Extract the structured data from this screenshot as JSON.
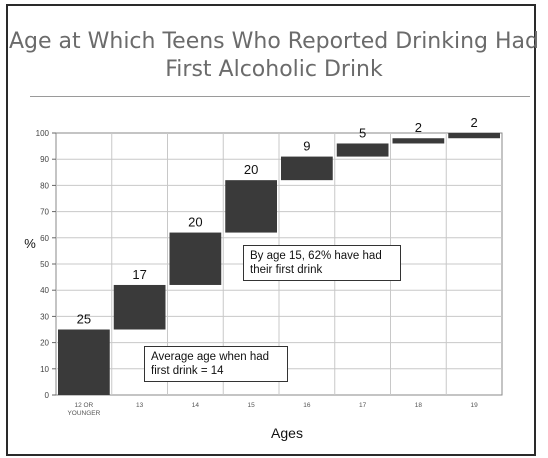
{
  "chart_data": {
    "type": "bar",
    "subtype": "waterfall-cumulative",
    "title": "Age at Which Teens Who Reported Drinking Had First Alcoholic Drink",
    "xlabel": "Ages",
    "ylabel": "%",
    "ylim": [
      0,
      100
    ],
    "ytick_step": 10,
    "yticks": [
      "0",
      "10",
      "20",
      "30",
      "40",
      "50",
      "60",
      "70",
      "80",
      "90",
      "100"
    ],
    "grid": true,
    "bar_color": "#3a3a3a",
    "categories": [
      "12 OR YOUNGER",
      "13",
      "14",
      "15",
      "16",
      "17",
      "18",
      "19"
    ],
    "values": [
      25,
      17,
      20,
      20,
      9,
      5,
      2,
      2
    ],
    "value_labels": [
      "25",
      "17",
      "20",
      "20",
      "9",
      "5",
      "2",
      "2"
    ],
    "bar_start": [
      0,
      25,
      42,
      62,
      82,
      91,
      96,
      98
    ],
    "bar_end": [
      25,
      42,
      62,
      82,
      91,
      96,
      98,
      100
    ],
    "annotations": [
      {
        "text": "By age 15, 62% have had their first drink"
      },
      {
        "text": "Average age when had first drink = 14"
      }
    ]
  }
}
